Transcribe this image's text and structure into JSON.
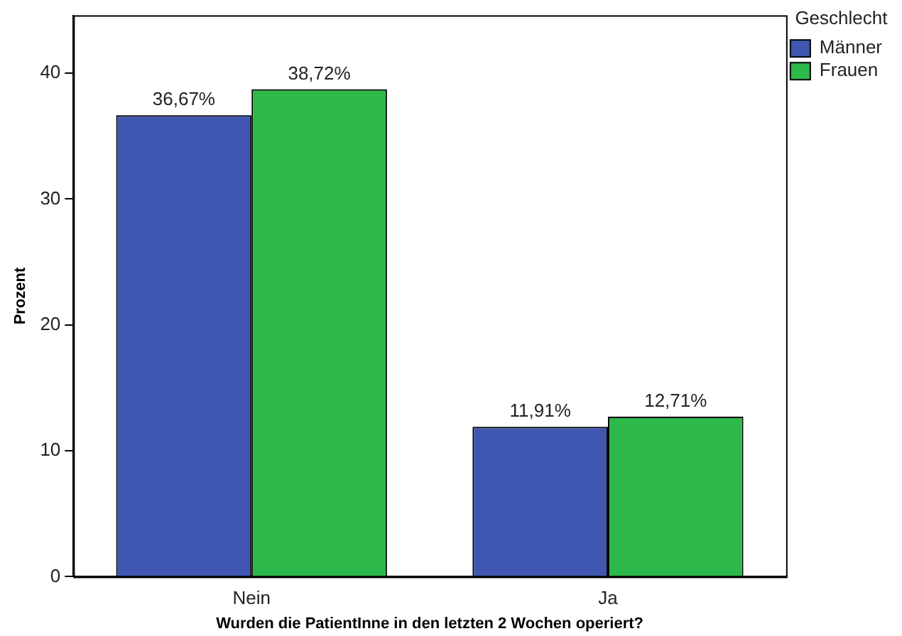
{
  "chart_data": {
    "type": "bar",
    "xlabel": "Wurden die PatientInne in den letzten 2 Wochen operiert?",
    "ylabel": "Prozent",
    "legend_title": "Geschlecht",
    "legend": "top right",
    "categories": [
      "Nein",
      "Ja"
    ],
    "series": [
      {
        "name": "Männer",
        "color": "#3f57b0",
        "values": [
          36.67,
          11.91
        ],
        "value_labels": [
          "36,67%",
          "11,91%"
        ]
      },
      {
        "name": "Frauen",
        "color": "#2db84a",
        "values": [
          38.72,
          12.71
        ],
        "value_labels": [
          "38,72%",
          "12,71%"
        ]
      }
    ],
    "ylim": [
      0,
      44.6
    ],
    "yticks": [
      0,
      10,
      20,
      30,
      40
    ],
    "grid": false
  }
}
